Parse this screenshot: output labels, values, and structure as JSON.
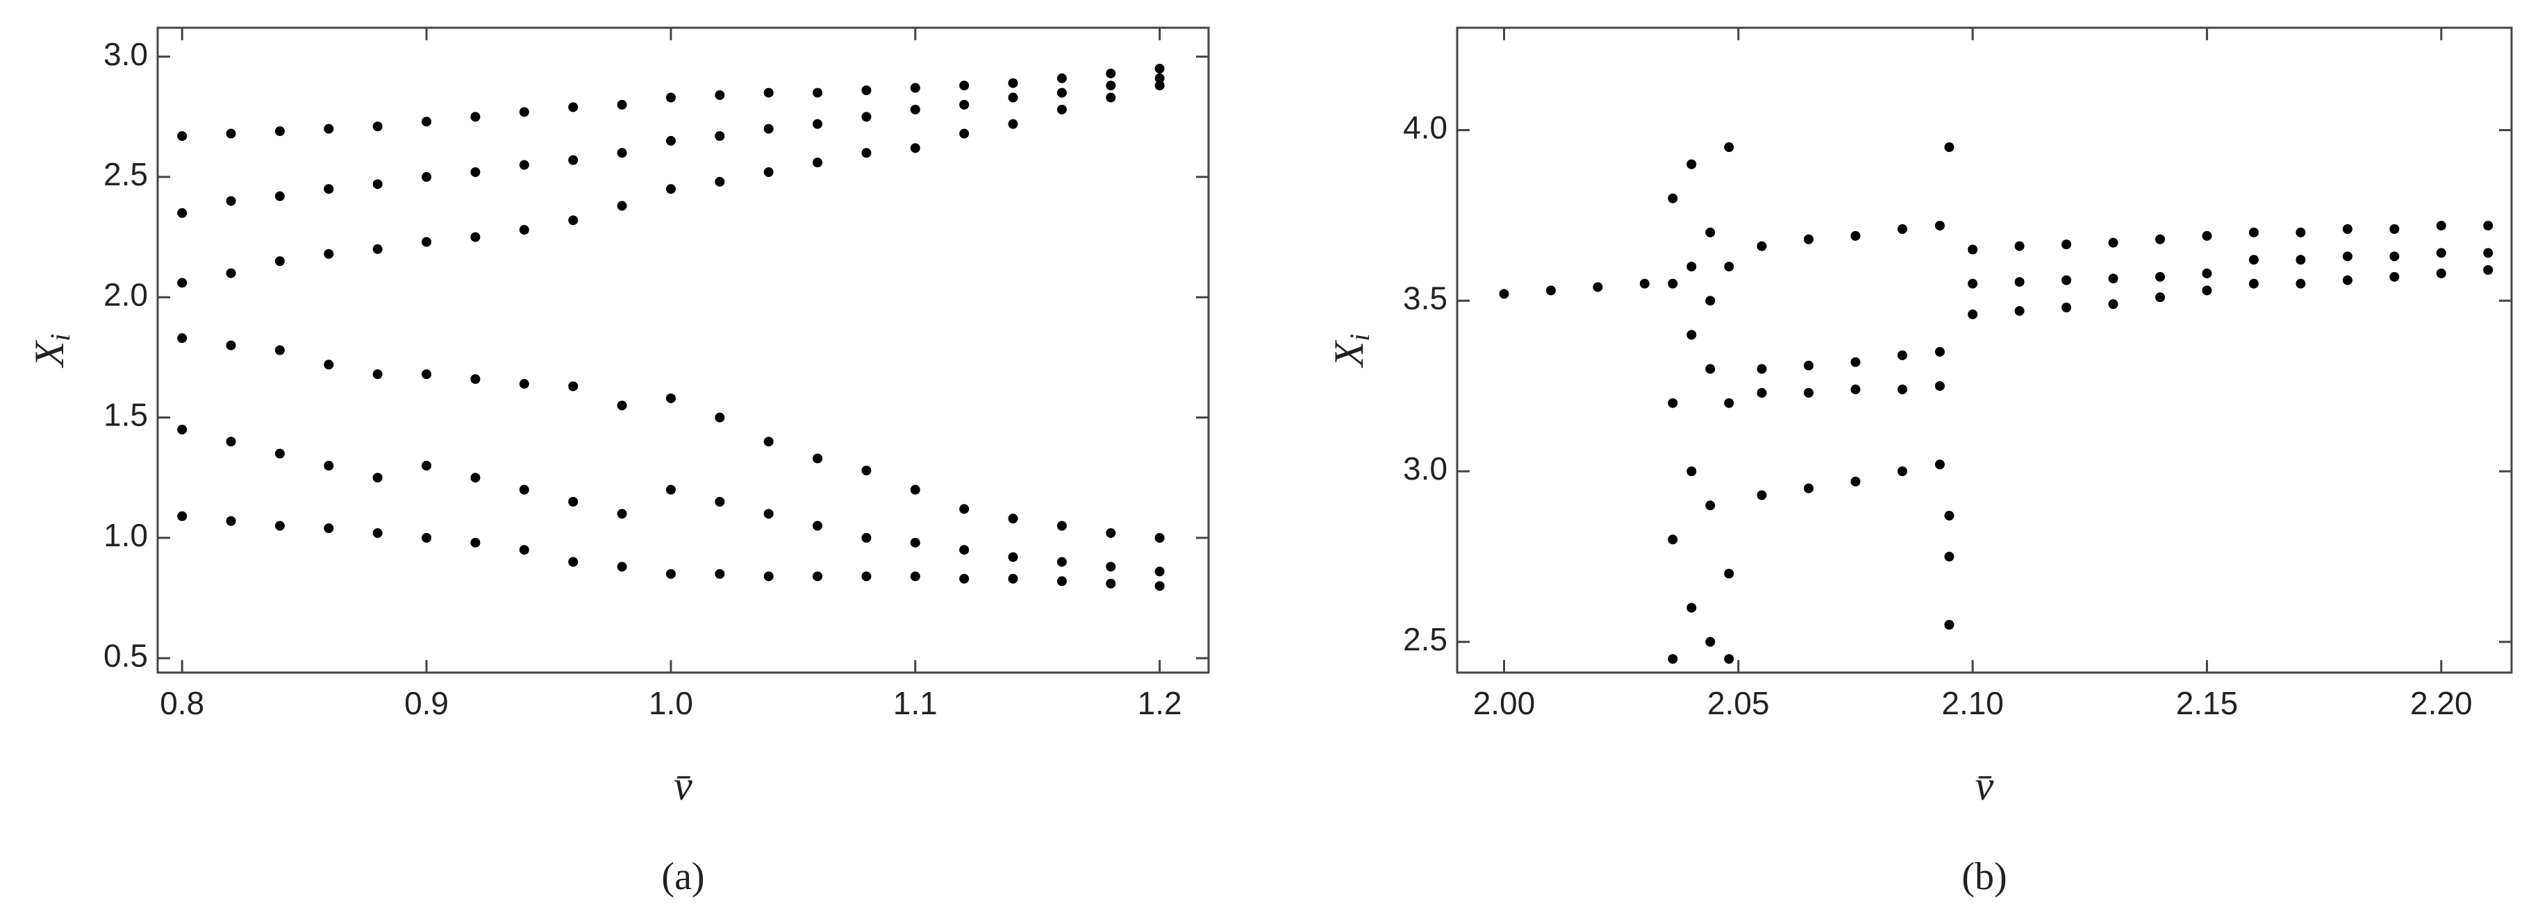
{
  "chart_data": [
    {
      "type": "scatter",
      "label": "(a)",
      "xlabel": "v̄",
      "ylabel_main": "X",
      "ylabel_sub": "i",
      "xlim": [
        0.79,
        1.22
      ],
      "ylim": [
        0.44,
        3.12
      ],
      "xticks": [
        0.8,
        0.9,
        {
          "value": 1.0,
          "label": "1.0"
        },
        1.1,
        1.2
      ],
      "yticks": [
        0.5,
        {
          "value": 1.0,
          "label": "1.0"
        },
        1.5,
        {
          "value": 2.0,
          "label": "2.0"
        },
        2.5,
        {
          "value": 3.0,
          "label": "3.0"
        }
      ],
      "color": "#000000",
      "x": [
        0.8,
        0.8,
        0.8,
        0.8,
        0.8,
        0.8,
        0.82,
        0.82,
        0.82,
        0.82,
        0.82,
        0.82,
        0.84,
        0.84,
        0.84,
        0.84,
        0.84,
        0.84,
        0.86,
        0.86,
        0.86,
        0.86,
        0.86,
        0.86,
        0.88,
        0.88,
        0.88,
        0.88,
        0.88,
        0.88,
        0.9,
        0.9,
        0.9,
        0.9,
        0.9,
        0.9,
        0.92,
        0.92,
        0.92,
        0.92,
        0.92,
        0.92,
        0.94,
        0.94,
        0.94,
        0.94,
        0.94,
        0.94,
        0.96,
        0.96,
        0.96,
        0.96,
        0.96,
        0.96,
        0.98,
        0.98,
        0.98,
        0.98,
        0.98,
        0.98,
        1.0,
        1.0,
        1.0,
        1.0,
        1.0,
        1.0,
        1.02,
        1.02,
        1.02,
        1.02,
        1.02,
        1.02,
        1.04,
        1.04,
        1.04,
        1.04,
        1.04,
        1.04,
        1.06,
        1.06,
        1.06,
        1.06,
        1.06,
        1.06,
        1.08,
        1.08,
        1.08,
        1.08,
        1.08,
        1.08,
        1.1,
        1.1,
        1.1,
        1.1,
        1.1,
        1.1,
        1.12,
        1.12,
        1.12,
        1.12,
        1.12,
        1.12,
        1.14,
        1.14,
        1.14,
        1.14,
        1.14,
        1.14,
        1.16,
        1.16,
        1.16,
        1.16,
        1.16,
        1.16,
        1.18,
        1.18,
        1.18,
        1.18,
        1.18,
        1.18,
        1.2,
        1.2,
        1.2,
        1.2,
        1.2,
        1.2
      ],
      "values": [
        2.67,
        2.35,
        2.06,
        1.83,
        1.45,
        1.09,
        2.68,
        2.4,
        2.1,
        1.8,
        1.4,
        1.07,
        2.69,
        2.42,
        2.15,
        1.78,
        1.35,
        1.05,
        2.7,
        2.45,
        2.18,
        1.72,
        1.3,
        1.04,
        2.71,
        2.47,
        2.2,
        1.68,
        1.25,
        1.02,
        2.73,
        2.5,
        2.23,
        1.68,
        1.3,
        1.0,
        2.75,
        2.52,
        2.25,
        1.66,
        1.25,
        0.98,
        2.77,
        2.55,
        2.28,
        1.64,
        1.2,
        0.95,
        2.79,
        2.57,
        2.32,
        1.63,
        1.15,
        0.9,
        2.8,
        2.6,
        2.38,
        1.55,
        1.1,
        0.88,
        2.83,
        2.65,
        2.45,
        1.58,
        1.2,
        0.85,
        2.84,
        2.67,
        2.48,
        1.5,
        1.15,
        0.85,
        2.85,
        2.7,
        2.52,
        1.4,
        1.1,
        0.84,
        2.85,
        2.72,
        2.56,
        1.33,
        1.05,
        0.84,
        2.86,
        2.75,
        2.6,
        1.28,
        1.0,
        0.84,
        2.87,
        2.78,
        2.62,
        1.2,
        0.98,
        0.84,
        2.88,
        2.8,
        2.68,
        1.12,
        0.95,
        0.83,
        2.89,
        2.83,
        2.72,
        1.08,
        0.92,
        0.83,
        2.91,
        2.85,
        2.78,
        1.05,
        0.9,
        0.82,
        2.93,
        2.88,
        2.83,
        1.02,
        0.88,
        0.81,
        2.95,
        2.91,
        2.88,
        1.0,
        0.86,
        0.8
      ]
    },
    {
      "type": "scatter",
      "label": "(b)",
      "xlabel": "v̄",
      "ylabel_main": "X",
      "ylabel_sub": "i",
      "xlim": [
        1.99,
        2.215
      ],
      "ylim": [
        2.41,
        4.3
      ],
      "xticks": [
        {
          "value": 2.0,
          "label": "2.00"
        },
        2.05,
        {
          "value": 2.1,
          "label": "2.10"
        },
        2.15,
        {
          "value": 2.2,
          "label": "2.20"
        }
      ],
      "yticks": [
        2.5,
        {
          "value": 3.0,
          "label": "3.0"
        },
        3.5,
        {
          "value": 4.0,
          "label": "4.0"
        }
      ],
      "color": "#000000",
      "x": [
        2.0,
        2.01,
        2.02,
        2.03,
        2.036,
        2.036,
        2.036,
        2.036,
        2.036,
        2.04,
        2.04,
        2.04,
        2.04,
        2.04,
        2.044,
        2.044,
        2.044,
        2.044,
        2.044,
        2.048,
        2.048,
        2.048,
        2.048,
        2.048,
        2.055,
        2.055,
        2.055,
        2.055,
        2.065,
        2.065,
        2.065,
        2.065,
        2.075,
        2.075,
        2.075,
        2.075,
        2.085,
        2.085,
        2.085,
        2.085,
        2.093,
        2.093,
        2.093,
        2.093,
        2.095,
        2.095,
        2.095,
        2.095,
        2.1,
        2.1,
        2.1,
        2.11,
        2.11,
        2.11,
        2.12,
        2.12,
        2.12,
        2.13,
        2.13,
        2.13,
        2.14,
        2.14,
        2.14,
        2.15,
        2.15,
        2.15,
        2.16,
        2.16,
        2.16,
        2.17,
        2.17,
        2.17,
        2.18,
        2.18,
        2.18,
        2.19,
        2.19,
        2.19,
        2.2,
        2.2,
        2.2,
        2.21,
        2.21,
        2.21
      ],
      "values": [
        3.52,
        3.53,
        3.54,
        3.55,
        3.55,
        3.2,
        2.8,
        2.45,
        3.8,
        3.6,
        3.4,
        3.0,
        2.6,
        3.9,
        3.5,
        3.7,
        2.9,
        3.3,
        2.5,
        3.6,
        3.2,
        2.7,
        3.95,
        2.45,
        3.66,
        3.3,
        3.23,
        2.93,
        3.68,
        3.31,
        3.23,
        2.95,
        3.69,
        3.32,
        3.24,
        2.97,
        3.71,
        3.34,
        3.24,
        3.0,
        3.72,
        3.35,
        3.25,
        3.02,
        3.95,
        2.55,
        2.75,
        2.87,
        3.65,
        3.55,
        3.46,
        3.66,
        3.555,
        3.47,
        3.665,
        3.56,
        3.48,
        3.67,
        3.565,
        3.49,
        3.68,
        3.57,
        3.51,
        3.69,
        3.58,
        3.53,
        3.7,
        3.62,
        3.55,
        3.7,
        3.62,
        3.55,
        3.71,
        3.63,
        3.56,
        3.71,
        3.63,
        3.57,
        3.72,
        3.64,
        3.58,
        3.72,
        3.64,
        3.59
      ]
    }
  ]
}
